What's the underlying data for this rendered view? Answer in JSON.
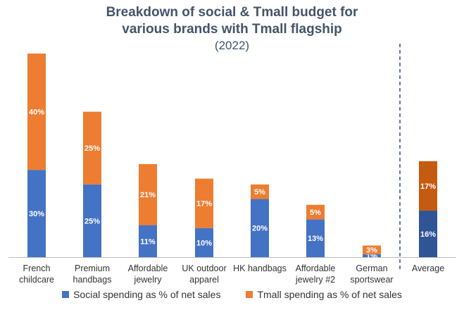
{
  "chart_data": {
    "type": "bar",
    "stacked": true,
    "title": "Breakdown of social & Tmall budget for various brands with Tmall flagship",
    "title_lines": [
      "Breakdown of social & Tmall budget for",
      "various brands with Tmall flagship"
    ],
    "subtitle": "(2022)",
    "categories": [
      [
        "French",
        "childcare"
      ],
      [
        "Premium",
        "handbags"
      ],
      [
        "Affordable",
        "jewelry"
      ],
      [
        "UK outdoor",
        "apparel"
      ],
      [
        "HK handbags"
      ],
      [
        "Affordable",
        "jewelry #2"
      ],
      [
        "German",
        "sportswear"
      ],
      [
        "Average"
      ]
    ],
    "series": [
      {
        "name": "Social spending as % of net sales",
        "values": [
          30,
          25,
          11,
          10,
          20,
          13,
          1,
          16
        ],
        "labels": [
          "30%",
          "25%",
          "11%",
          "10%",
          "20%",
          "13%",
          "1%",
          "16%"
        ],
        "color": "#4472c4",
        "average_color": "#2f5597"
      },
      {
        "name": "Tmall spending as % of net sales",
        "values": [
          40,
          25,
          21,
          17,
          5,
          5,
          3,
          17
        ],
        "labels": [
          "40%",
          "25%",
          "21%",
          "17%",
          "5%",
          "5%",
          "3%",
          "17%"
        ],
        "color": "#ed7d31",
        "average_color": "#c55a11"
      }
    ],
    "ylim": [
      0,
      72
    ],
    "grid": false,
    "divider_before_category": "Average",
    "divider_color": "#2f4b8a",
    "legend_position": "bottom",
    "xlabel": "",
    "ylabel": ""
  }
}
